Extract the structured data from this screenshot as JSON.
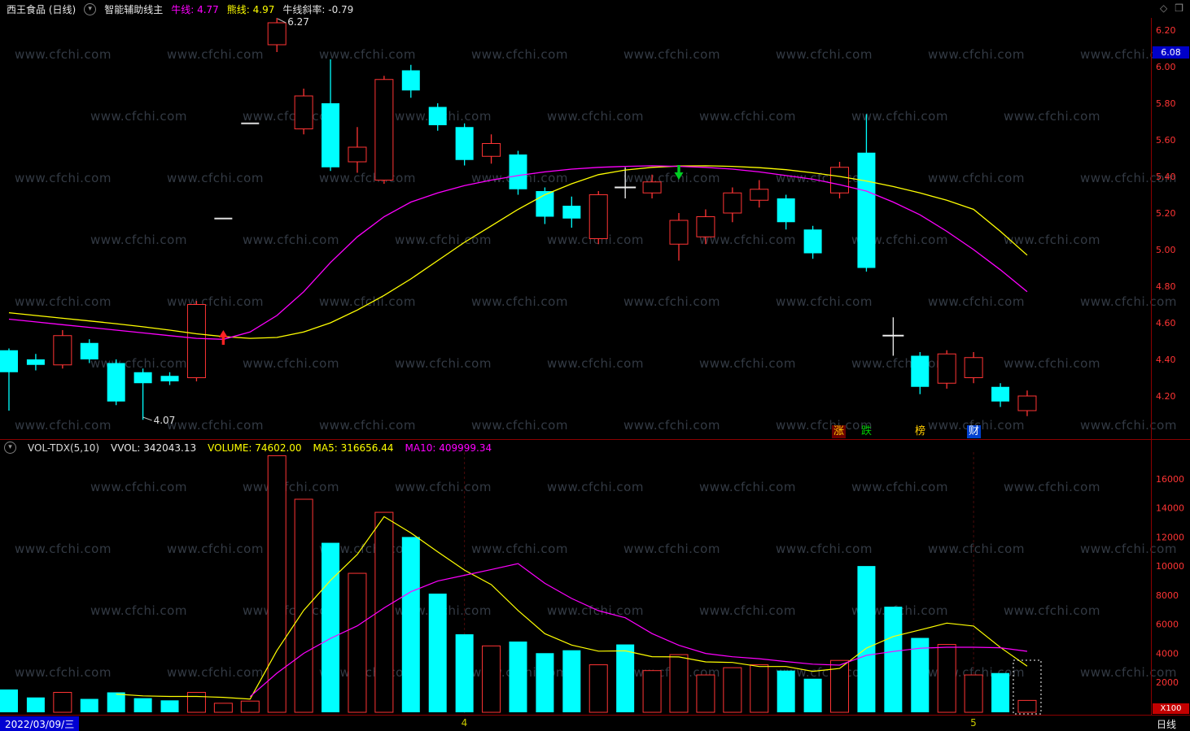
{
  "topbar": {
    "title": "西王食品 (日线)",
    "indicator": "智能辅助线主",
    "bull_label": "牛线:",
    "bull_value": "4.77",
    "bear_label": "熊线:",
    "bear_value": "4.97",
    "slope_label": "牛线斜率:",
    "slope_value": "-0.79"
  },
  "icons": {
    "toggle": "▾",
    "diamond": "◇",
    "window": "❒"
  },
  "watermark": "www.cfchi.com",
  "colors": {
    "up": "#ff3434",
    "down": "#00ffff",
    "bull": "#ff00ff",
    "bear": "#ffff00",
    "axis": "#ff3434",
    "border": "#8b0000",
    "flat_candle": "#dddddd",
    "doji": "#eeeeee",
    "buy_signal": "#ff2222",
    "sell_signal": "#00cc22",
    "tag_bg": "#0000c8"
  },
  "main_chart": {
    "y_axis": [
      "6.20",
      "6.00",
      "5.80",
      "5.60",
      "5.40",
      "5.20",
      "5.00",
      "4.80",
      "4.60",
      "4.40",
      "4.20"
    ],
    "price_tag": "6.08",
    "annotations": {
      "high": "6.27",
      "low": "4.07"
    },
    "quick_buttons": [
      {
        "name": "zhang",
        "label": "涨",
        "fg": "#ffcc00",
        "bg": "#6b0000"
      },
      {
        "name": "die",
        "label": "跌",
        "fg": "#00c800",
        "bg": ""
      },
      {
        "name": "bang",
        "label": "榜",
        "fg": "#ffcc00",
        "bg": ""
      },
      {
        "name": "cai",
        "label": "财",
        "fg": "#ffffff",
        "bg": "#0041d0"
      }
    ]
  },
  "volume_pane": {
    "header": {
      "name": "VOL-TDX(5,10)",
      "vvol_label": "VVOL:",
      "vvol": "342043.13",
      "volume_label": "VOLUME:",
      "volume": "74602.00",
      "ma5_label": "MA5:",
      "ma5": "316656.44",
      "ma10_label": "MA10:",
      "ma10": "409999.34"
    },
    "y_axis": [
      "16000",
      "14000",
      "12000",
      "10000",
      "8000",
      "6000",
      "4000",
      "2000"
    ],
    "unit": "X100"
  },
  "statusbar": {
    "date": "2022/03/09/三",
    "period": "日线",
    "months": [
      {
        "label": "4",
        "index": 17
      },
      {
        "label": "5",
        "index": 36
      }
    ]
  },
  "chart_data": {
    "type": "candlestick+volume",
    "price_range": [
      4.07,
      6.27
    ],
    "candle_format": "open,high,low,close",
    "candles": [
      [
        4.45,
        4.46,
        4.12,
        4.33
      ],
      [
        4.4,
        4.43,
        4.34,
        4.37
      ],
      [
        4.37,
        4.56,
        4.35,
        4.53
      ],
      [
        4.49,
        4.51,
        4.38,
        4.4
      ],
      [
        4.38,
        4.4,
        4.15,
        4.17
      ],
      [
        4.33,
        4.35,
        4.07,
        4.27
      ],
      [
        4.31,
        4.33,
        4.26,
        4.28
      ],
      [
        4.3,
        4.72,
        4.28,
        4.7
      ],
      [
        5.17,
        5.17,
        5.17,
        5.17
      ],
      [
        5.69,
        5.69,
        5.69,
        5.69
      ],
      [
        6.12,
        6.27,
        6.08,
        6.24
      ],
      [
        5.66,
        5.88,
        5.63,
        5.84
      ],
      [
        5.8,
        6.04,
        5.43,
        5.45
      ],
      [
        5.48,
        5.67,
        5.42,
        5.56
      ],
      [
        5.38,
        5.95,
        5.36,
        5.93
      ],
      [
        5.98,
        6.01,
        5.83,
        5.87
      ],
      [
        5.78,
        5.8,
        5.65,
        5.68
      ],
      [
        5.67,
        5.69,
        5.46,
        5.49
      ],
      [
        5.51,
        5.63,
        5.47,
        5.58
      ],
      [
        5.52,
        5.54,
        5.3,
        5.33
      ],
      [
        5.32,
        5.34,
        5.14,
        5.18
      ],
      [
        5.24,
        5.29,
        5.12,
        5.17
      ],
      [
        5.06,
        5.32,
        5.03,
        5.3
      ],
      [
        5.34,
        5.45,
        5.28,
        5.34
      ],
      [
        5.31,
        5.41,
        5.28,
        5.37
      ],
      [
        5.03,
        5.2,
        4.94,
        5.16
      ],
      [
        5.07,
        5.22,
        5.03,
        5.18
      ],
      [
        5.2,
        5.34,
        5.15,
        5.31
      ],
      [
        5.27,
        5.38,
        5.23,
        5.33
      ],
      [
        5.28,
        5.3,
        5.11,
        5.15
      ],
      [
        5.11,
        5.13,
        4.95,
        4.98
      ],
      [
        5.31,
        5.48,
        5.28,
        5.45
      ],
      [
        5.53,
        5.74,
        4.88,
        4.9
      ],
      [
        4.53,
        4.63,
        4.42,
        4.53
      ],
      [
        4.42,
        4.44,
        4.21,
        4.25
      ],
      [
        4.27,
        4.45,
        4.24,
        4.43
      ],
      [
        4.3,
        4.44,
        4.27,
        4.41
      ],
      [
        4.25,
        4.27,
        4.14,
        4.17
      ],
      [
        4.12,
        4.23,
        4.09,
        4.2
      ]
    ],
    "volumes_x100": [
      1500,
      950,
      1300,
      850,
      1300,
      900,
      750,
      1300,
      550,
      700,
      17600,
      14600,
      11600,
      9500,
      13700,
      12000,
      8100,
      5300,
      4500,
      4800,
      4000,
      4200,
      3200,
      4600,
      2800,
      3900,
      2500,
      3000,
      3200,
      2800,
      2240,
      3500,
      10000,
      7200,
      5050,
      4600,
      2500,
      2630,
      746
    ],
    "bull_line": [
      4.62,
      4.605,
      4.59,
      4.575,
      4.56,
      4.545,
      4.53,
      4.515,
      4.51,
      4.55,
      4.64,
      4.77,
      4.93,
      5.07,
      5.18,
      5.26,
      5.31,
      5.35,
      5.38,
      5.405,
      5.425,
      5.44,
      5.45,
      5.455,
      5.458,
      5.455,
      5.45,
      5.44,
      5.425,
      5.405,
      5.385,
      5.355,
      5.32,
      5.26,
      5.19,
      5.1,
      5.0,
      4.89,
      4.77
    ],
    "bear_line": [
      4.655,
      4.64,
      4.625,
      4.61,
      4.595,
      4.578,
      4.56,
      4.54,
      4.525,
      4.515,
      4.52,
      4.55,
      4.6,
      4.67,
      4.75,
      4.84,
      4.94,
      5.04,
      5.13,
      5.22,
      5.3,
      5.36,
      5.41,
      5.435,
      5.45,
      5.457,
      5.458,
      5.455,
      5.448,
      5.437,
      5.42,
      5.4,
      5.375,
      5.345,
      5.31,
      5.27,
      5.22,
      5.1,
      4.97
    ],
    "vol_ma_periods": [
      5,
      10
    ],
    "signals": [
      {
        "index": 8,
        "type": "buy"
      },
      {
        "index": 25,
        "type": "sell"
      }
    ],
    "selected_bar_index": 38
  }
}
